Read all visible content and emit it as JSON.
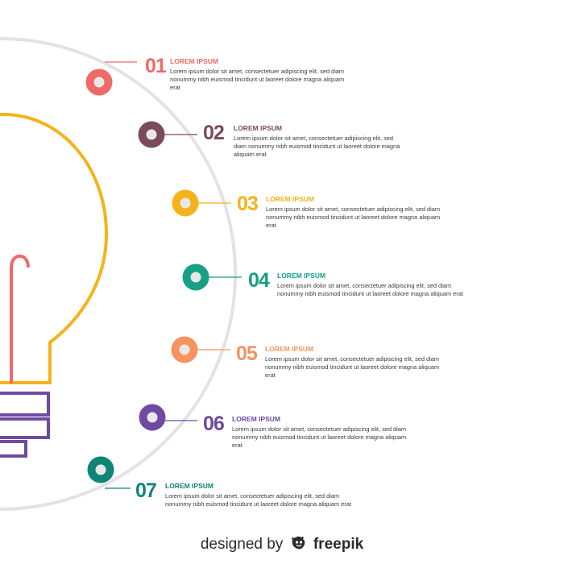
{
  "colors": {
    "circle": "#e3e3e3",
    "bulb": "#f5b21b",
    "filament": "#ef6a67",
    "base": "#6e4aa0"
  },
  "steps": [
    {
      "number": "01",
      "title": "LOREM IPSUM",
      "text": "Lorem ipsum dolor sit amet, consectetuer adipiscing elit, sed diam nonummy nibh euismod tincidunt ut laoreet dolore magna aliquam erat",
      "color": "#ef6a67"
    },
    {
      "number": "02",
      "title": "LOREM IPSUM",
      "text": "Lorem ipsum dolor sit amet, consectetuer adipiscing elit, sed diam nonummy nibh euismod tincidunt ut laoreet dolore magna aliquam erat",
      "color": "#7b4b5b"
    },
    {
      "number": "03",
      "title": "LOREM IPSUM",
      "text": "Lorem ipsum dolor sit amet, consectetuer adipiscing elit, sed diam nonummy nibh euismod tincidunt ut laoreet dolore magna aliquam erat",
      "color": "#f5b21b"
    },
    {
      "number": "04",
      "title": "LOREM IPSUM",
      "text": "Lorem ipsum dolor sit amet, consectetuer adipiscing elit, sed diam nonummy nibh euismod tincidunt ut laoreet dolore magna aliquam erat",
      "color": "#17a085"
    },
    {
      "number": "05",
      "title": "LOREM IPSUM",
      "text": "Lorem ipsum dolor sit amet, consectetuer adipiscing elit, sed diam nonummy nibh euismod tincidunt ut laoreet dolore magna aliquam erat",
      "color": "#f59361"
    },
    {
      "number": "06",
      "title": "LOREM IPSUM",
      "text": "Lorem ipsum dolor sit amet, consectetuer adipiscing elit, sed diam nonummy nibh euismod tincidunt ut laoreet dolore magna aliquam erat",
      "color": "#6e4aa0"
    },
    {
      "number": "07",
      "title": "LOREM IPSUM",
      "text": "Lorem ipsum dolor sit amet, consectetuer adipiscing elit, sed diam nonummy nibh euismod tincidunt ut laoreet dolore magna aliquam erat",
      "color": "#0f8578"
    }
  ],
  "footer": {
    "prefix": "designed by",
    "brand": "freepik",
    "brand_icon": "freepik-logo-icon"
  }
}
